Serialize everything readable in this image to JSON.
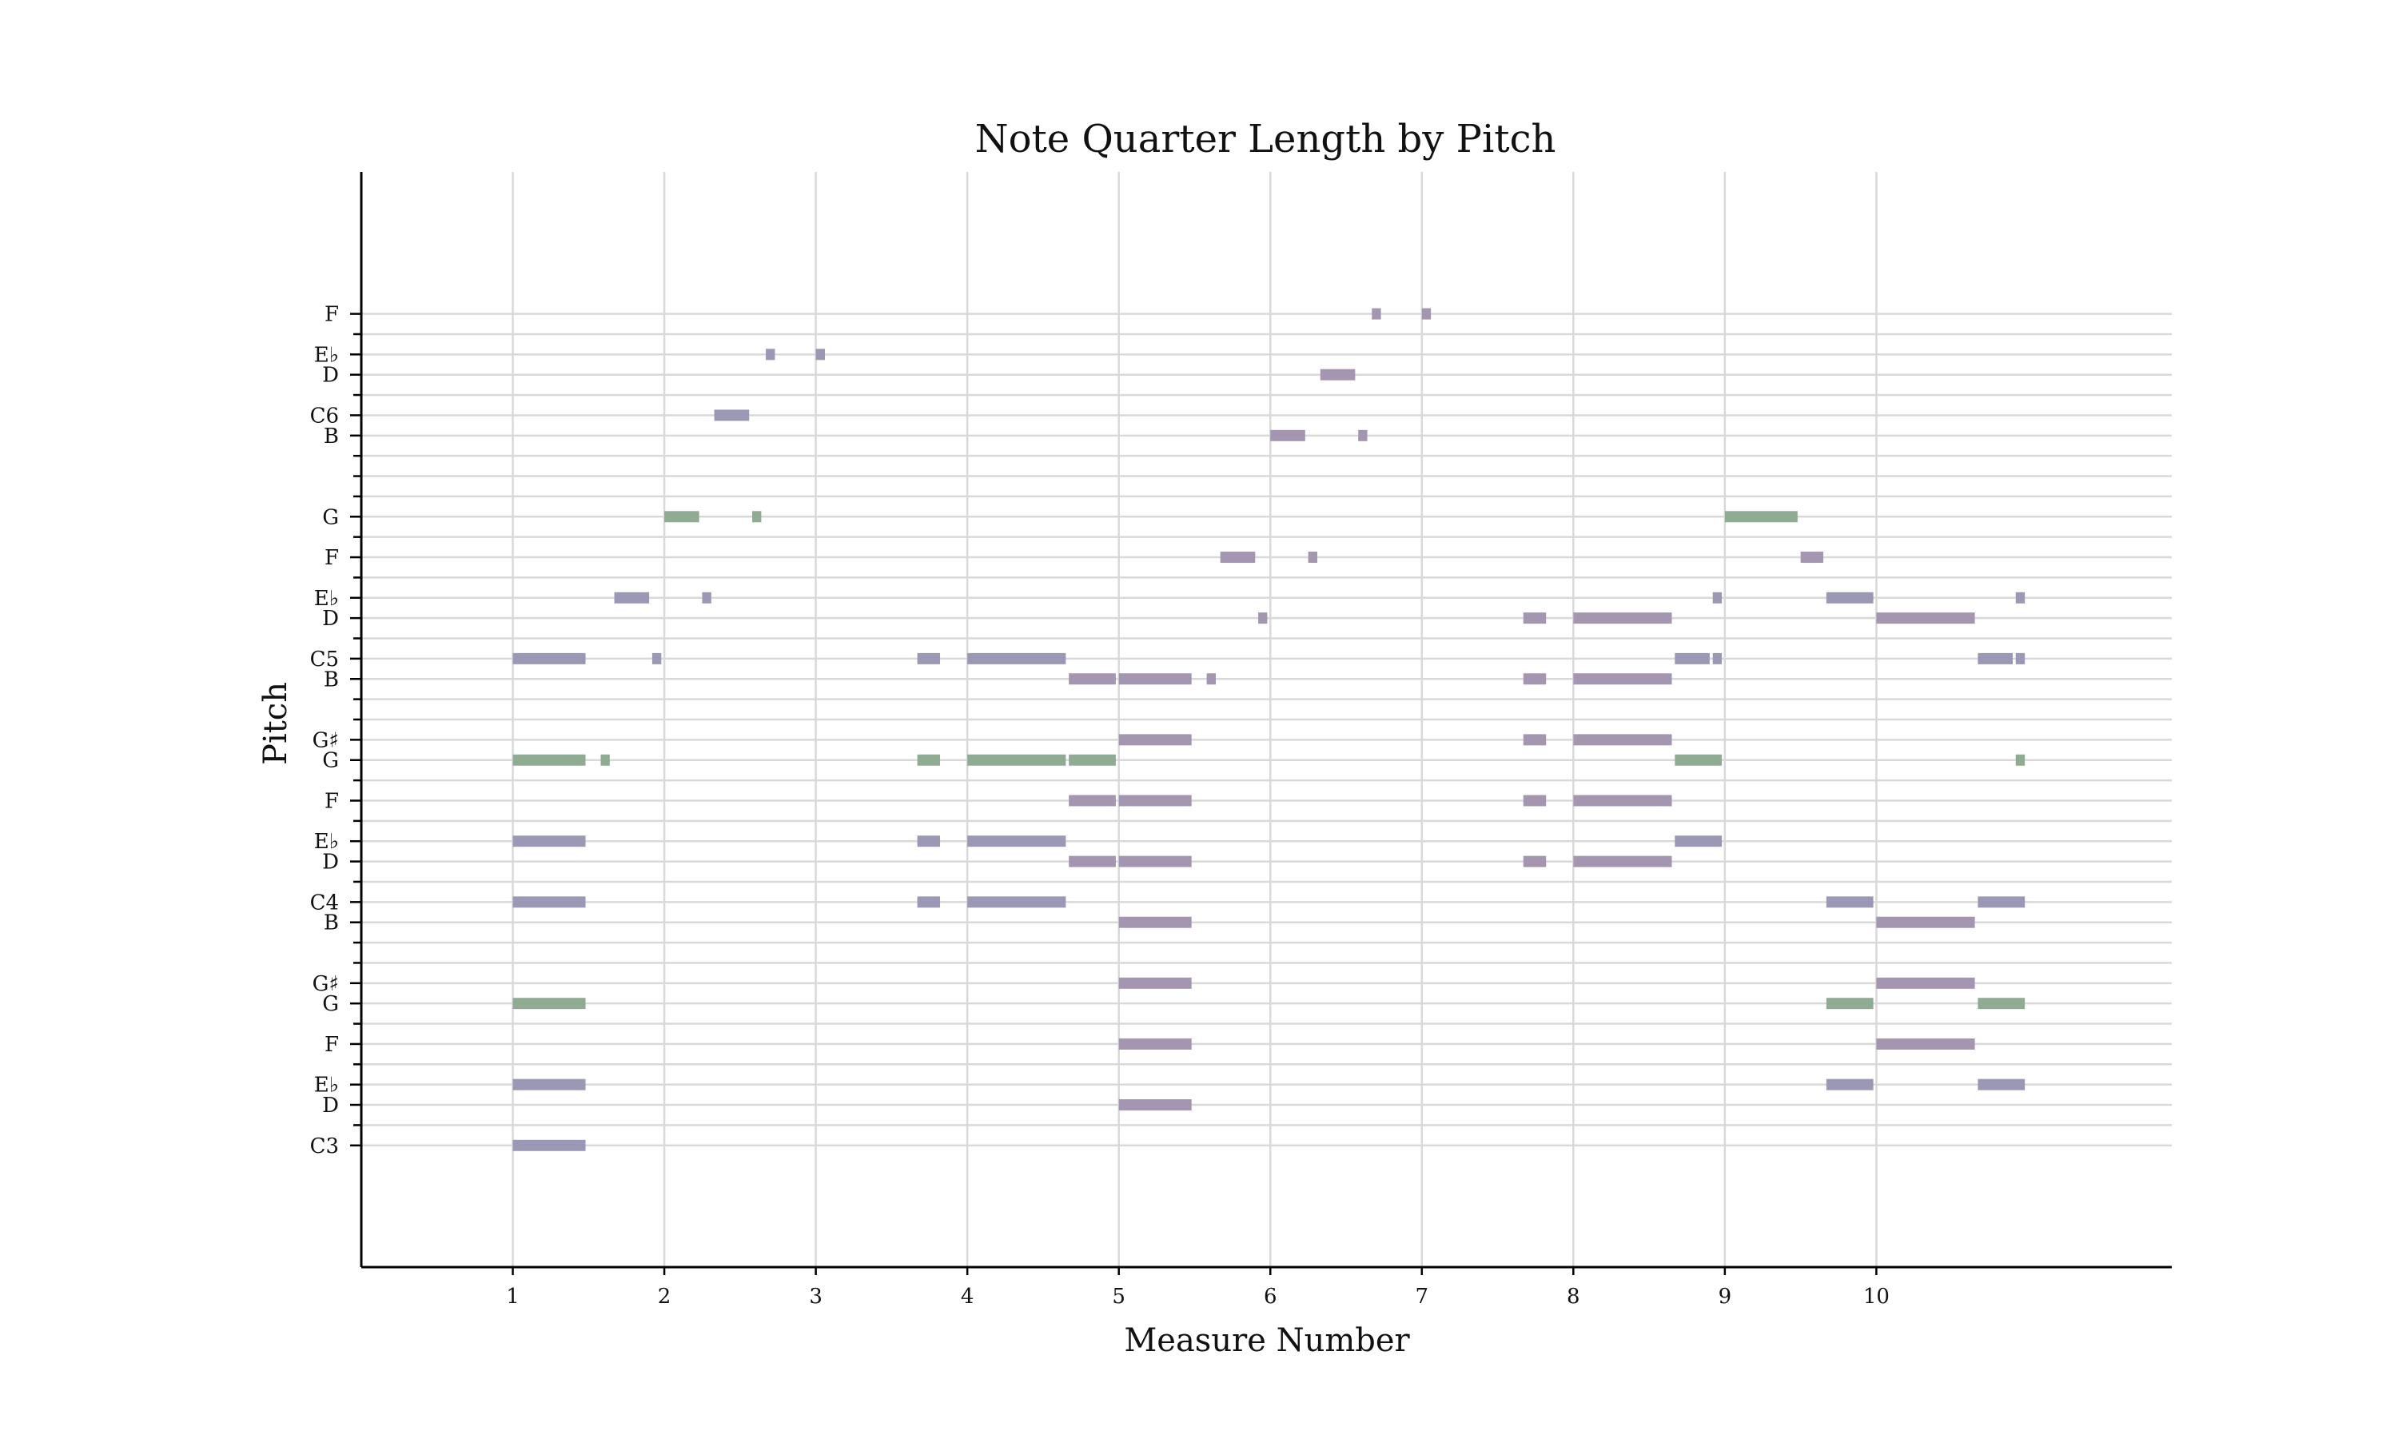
{
  "chart_data": {
    "type": "bar",
    "subtype": "piano-roll",
    "title": "Note Quarter Length by Pitch",
    "xlabel": "Measure Number",
    "ylabel": "Pitch",
    "xlim": [
      0,
      11.95
    ],
    "ylim": [
      42,
      96
    ],
    "x_ticks": [
      1,
      2,
      3,
      4,
      5,
      6,
      7,
      8,
      9,
      10
    ],
    "y_ticks": [
      {
        "midi": 48,
        "label": "C3"
      },
      {
        "midi": 50,
        "label": "D"
      },
      {
        "midi": 51,
        "label": "E♭"
      },
      {
        "midi": 53,
        "label": "F"
      },
      {
        "midi": 55,
        "label": "G"
      },
      {
        "midi": 56,
        "label": "G♯"
      },
      {
        "midi": 59,
        "label": "B"
      },
      {
        "midi": 60,
        "label": "C4"
      },
      {
        "midi": 62,
        "label": "D"
      },
      {
        "midi": 63,
        "label": "E♭"
      },
      {
        "midi": 65,
        "label": "F"
      },
      {
        "midi": 67,
        "label": "G"
      },
      {
        "midi": 68,
        "label": "G♯"
      },
      {
        "midi": 71,
        "label": "B"
      },
      {
        "midi": 72,
        "label": "C5"
      },
      {
        "midi": 74,
        "label": "D"
      },
      {
        "midi": 75,
        "label": "E♭"
      },
      {
        "midi": 77,
        "label": "F"
      },
      {
        "midi": 79,
        "label": "G"
      },
      {
        "midi": 83,
        "label": "B"
      },
      {
        "midi": 84,
        "label": "C6"
      },
      {
        "midi": 86,
        "label": "D"
      },
      {
        "midi": 87,
        "label": "E♭"
      },
      {
        "midi": 89,
        "label": "F"
      }
    ],
    "grid_pitches": [
      48,
      49,
      50,
      51,
      52,
      53,
      54,
      55,
      56,
      57,
      58,
      59,
      60,
      61,
      62,
      63,
      64,
      65,
      66,
      67,
      68,
      69,
      70,
      71,
      72,
      73,
      74,
      75,
      76,
      77,
      78,
      79,
      80,
      81,
      82,
      83,
      84,
      85,
      86,
      87,
      88,
      89
    ],
    "minor_ticks": [
      49,
      52,
      54,
      57,
      58,
      61,
      64,
      66,
      69,
      70,
      73,
      76,
      78,
      80,
      81,
      82,
      85,
      88
    ],
    "grid": true,
    "colors": {
      "default": "#9a98b4",
      "green": "#8fac93",
      "purple": "#a496b0"
    },
    "notes": [
      {
        "p": 48,
        "s": 1.0,
        "d": 0.48,
        "c": "default"
      },
      {
        "p": 51,
        "s": 1.0,
        "d": 0.48,
        "c": "default"
      },
      {
        "p": 55,
        "s": 1.0,
        "d": 0.48,
        "c": "green"
      },
      {
        "p": 60,
        "s": 1.0,
        "d": 0.48,
        "c": "default"
      },
      {
        "p": 63,
        "s": 1.0,
        "d": 0.48,
        "c": "default"
      },
      {
        "p": 67,
        "s": 1.0,
        "d": 0.48,
        "c": "green"
      },
      {
        "p": 72,
        "s": 1.0,
        "d": 0.48,
        "c": "default"
      },
      {
        "p": 67,
        "s": 1.58,
        "d": 0.06,
        "c": "green"
      },
      {
        "p": 75,
        "s": 1.67,
        "d": 0.23,
        "c": "default"
      },
      {
        "p": 72,
        "s": 1.92,
        "d": 0.06,
        "c": "default"
      },
      {
        "p": 79,
        "s": 2.0,
        "d": 0.23,
        "c": "green"
      },
      {
        "p": 75,
        "s": 2.25,
        "d": 0.06,
        "c": "default"
      },
      {
        "p": 84,
        "s": 2.33,
        "d": 0.23,
        "c": "default"
      },
      {
        "p": 79,
        "s": 2.58,
        "d": 0.06,
        "c": "green"
      },
      {
        "p": 87,
        "s": 2.67,
        "d": 0.06,
        "c": "default"
      },
      {
        "p": 87,
        "s": 3.0,
        "d": 0.06,
        "c": "default"
      },
      {
        "p": 72,
        "s": 3.67,
        "d": 0.15,
        "c": "default"
      },
      {
        "p": 67,
        "s": 3.67,
        "d": 0.15,
        "c": "green"
      },
      {
        "p": 63,
        "s": 3.67,
        "d": 0.15,
        "c": "default"
      },
      {
        "p": 60,
        "s": 3.67,
        "d": 0.15,
        "c": "default"
      },
      {
        "p": 72,
        "s": 4.0,
        "d": 0.65,
        "c": "default"
      },
      {
        "p": 67,
        "s": 4.0,
        "d": 0.65,
        "c": "green"
      },
      {
        "p": 63,
        "s": 4.0,
        "d": 0.65,
        "c": "default"
      },
      {
        "p": 60,
        "s": 4.0,
        "d": 0.65,
        "c": "default"
      },
      {
        "p": 71,
        "s": 4.67,
        "d": 0.31,
        "c": "purple"
      },
      {
        "p": 67,
        "s": 4.67,
        "d": 0.31,
        "c": "green"
      },
      {
        "p": 65,
        "s": 4.67,
        "d": 0.31,
        "c": "purple"
      },
      {
        "p": 62,
        "s": 4.67,
        "d": 0.31,
        "c": "purple"
      },
      {
        "p": 71,
        "s": 5.0,
        "d": 0.48,
        "c": "purple"
      },
      {
        "p": 68,
        "s": 5.0,
        "d": 0.48,
        "c": "purple"
      },
      {
        "p": 65,
        "s": 5.0,
        "d": 0.48,
        "c": "purple"
      },
      {
        "p": 62,
        "s": 5.0,
        "d": 0.48,
        "c": "purple"
      },
      {
        "p": 59,
        "s": 5.0,
        "d": 0.48,
        "c": "purple"
      },
      {
        "p": 56,
        "s": 5.0,
        "d": 0.48,
        "c": "purple"
      },
      {
        "p": 53,
        "s": 5.0,
        "d": 0.48,
        "c": "purple"
      },
      {
        "p": 50,
        "s": 5.0,
        "d": 0.48,
        "c": "purple"
      },
      {
        "p": 71,
        "s": 5.58,
        "d": 0.06,
        "c": "purple"
      },
      {
        "p": 77,
        "s": 5.67,
        "d": 0.23,
        "c": "purple"
      },
      {
        "p": 74,
        "s": 5.92,
        "d": 0.06,
        "c": "purple"
      },
      {
        "p": 83,
        "s": 6.0,
        "d": 0.23,
        "c": "purple"
      },
      {
        "p": 77,
        "s": 6.25,
        "d": 0.06,
        "c": "purple"
      },
      {
        "p": 86,
        "s": 6.33,
        "d": 0.23,
        "c": "purple"
      },
      {
        "p": 83,
        "s": 6.58,
        "d": 0.06,
        "c": "purple"
      },
      {
        "p": 89,
        "s": 6.67,
        "d": 0.06,
        "c": "purple"
      },
      {
        "p": 89,
        "s": 7.0,
        "d": 0.06,
        "c": "purple"
      },
      {
        "p": 74,
        "s": 7.67,
        "d": 0.15,
        "c": "purple"
      },
      {
        "p": 71,
        "s": 7.67,
        "d": 0.15,
        "c": "purple"
      },
      {
        "p": 68,
        "s": 7.67,
        "d": 0.15,
        "c": "purple"
      },
      {
        "p": 65,
        "s": 7.67,
        "d": 0.15,
        "c": "purple"
      },
      {
        "p": 62,
        "s": 7.67,
        "d": 0.15,
        "c": "purple"
      },
      {
        "p": 74,
        "s": 8.0,
        "d": 0.65,
        "c": "purple"
      },
      {
        "p": 71,
        "s": 8.0,
        "d": 0.65,
        "c": "purple"
      },
      {
        "p": 68,
        "s": 8.0,
        "d": 0.65,
        "c": "purple"
      },
      {
        "p": 65,
        "s": 8.0,
        "d": 0.65,
        "c": "purple"
      },
      {
        "p": 62,
        "s": 8.0,
        "d": 0.65,
        "c": "purple"
      },
      {
        "p": 72,
        "s": 8.67,
        "d": 0.23,
        "c": "default"
      },
      {
        "p": 67,
        "s": 8.67,
        "d": 0.31,
        "c": "green"
      },
      {
        "p": 63,
        "s": 8.67,
        "d": 0.31,
        "c": "default"
      },
      {
        "p": 72,
        "s": 8.92,
        "d": 0.06,
        "c": "default"
      },
      {
        "p": 75,
        "s": 8.92,
        "d": 0.06,
        "c": "default"
      },
      {
        "p": 79,
        "s": 9.0,
        "d": 0.48,
        "c": "green"
      },
      {
        "p": 77,
        "s": 9.5,
        "d": 0.15,
        "c": "purple"
      },
      {
        "p": 75,
        "s": 9.67,
        "d": 0.31,
        "c": "default"
      },
      {
        "p": 60,
        "s": 9.67,
        "d": 0.31,
        "c": "default"
      },
      {
        "p": 55,
        "s": 9.67,
        "d": 0.31,
        "c": "green"
      },
      {
        "p": 51,
        "s": 9.67,
        "d": 0.31,
        "c": "default"
      },
      {
        "p": 74,
        "s": 10.0,
        "d": 0.65,
        "c": "purple"
      },
      {
        "p": 59,
        "s": 10.0,
        "d": 0.65,
        "c": "purple"
      },
      {
        "p": 56,
        "s": 10.0,
        "d": 0.65,
        "c": "purple"
      },
      {
        "p": 53,
        "s": 10.0,
        "d": 0.65,
        "c": "purple"
      },
      {
        "p": 72,
        "s": 10.67,
        "d": 0.23,
        "c": "default"
      },
      {
        "p": 60,
        "s": 10.67,
        "d": 0.31,
        "c": "default"
      },
      {
        "p": 55,
        "s": 10.67,
        "d": 0.31,
        "c": "green"
      },
      {
        "p": 51,
        "s": 10.67,
        "d": 0.31,
        "c": "default"
      },
      {
        "p": 72,
        "s": 10.92,
        "d": 0.06,
        "c": "default"
      },
      {
        "p": 75,
        "s": 10.92,
        "d": 0.06,
        "c": "default"
      },
      {
        "p": 67,
        "s": 10.92,
        "d": 0.06,
        "c": "green"
      }
    ]
  }
}
